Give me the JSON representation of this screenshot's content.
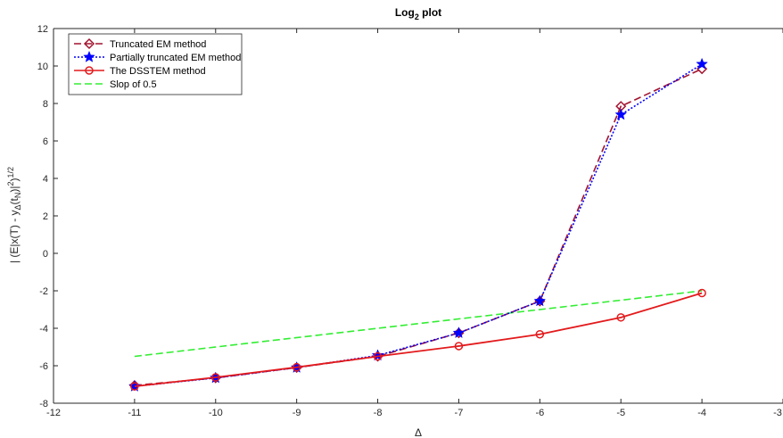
{
  "chart_data": {
    "type": "line",
    "title_main": "Log",
    "title_sub": "2",
    "title_rest": " plot",
    "xlabel": "Δ",
    "ylabel": "| (E|x(T) - y_Δ(t_N)|²)^{1/2}",
    "ylabel_parts": {
      "a": "| (E|x(T) - y",
      "b": "Δ",
      "c": "(t",
      "d": "N",
      "e": ")|",
      "f": "2",
      "g": ")",
      "h": "1/2"
    },
    "xlim": [
      -12,
      -3
    ],
    "ylim": [
      -8,
      12
    ],
    "xticks": [
      -12,
      -11,
      -10,
      -9,
      -8,
      -7,
      -6,
      -5,
      -4,
      -3
    ],
    "xtick_labels": [
      "-12",
      "-11",
      "-10",
      "-9",
      "-8",
      "-7",
      "-6",
      "-5",
      "-4",
      "-3"
    ],
    "yticks": [
      -8,
      -6,
      -4,
      -2,
      0,
      2,
      4,
      6,
      8,
      10,
      12
    ],
    "ytick_labels": [
      "-8",
      "-6",
      "-4",
      "-2",
      "0",
      "2",
      "4",
      "6",
      "8",
      "10",
      "12"
    ],
    "grid": false,
    "legend_position": "top-left",
    "series": [
      {
        "name": "Truncated EM method",
        "color": "#a2142f",
        "dash": "dashed",
        "marker": "diamond",
        "x": [
          -11,
          -10,
          -9,
          -8,
          -7,
          -6,
          -5,
          -4
        ],
        "y": [
          -7.05,
          -6.65,
          -6.1,
          -5.5,
          -4.25,
          -2.55,
          7.85,
          9.85
        ]
      },
      {
        "name": "Partially truncated EM method",
        "color": "#0000ff",
        "dash": "dotted",
        "marker": "star",
        "x": [
          -11,
          -10,
          -9,
          -8,
          -7,
          -6,
          -5,
          -4
        ],
        "y": [
          -7.1,
          -6.65,
          -6.1,
          -5.45,
          -4.25,
          -2.55,
          7.4,
          10.1
        ]
      },
      {
        "name": "The DSSTEM method",
        "color": "#e31a1c",
        "dash": "solid",
        "marker": "circle",
        "x": [
          -11,
          -10,
          -9,
          -8,
          -7,
          -6,
          -5,
          -4
        ],
        "y": [
          -7.1,
          -6.62,
          -6.08,
          -5.5,
          -4.95,
          -4.32,
          -3.42,
          -2.12
        ]
      },
      {
        "name": "Slop of 0.5",
        "color": "#33ee33",
        "dash": "dashed",
        "marker": "none",
        "x": [
          -11,
          -4
        ],
        "y": [
          -5.5,
          -2.0
        ]
      }
    ]
  }
}
